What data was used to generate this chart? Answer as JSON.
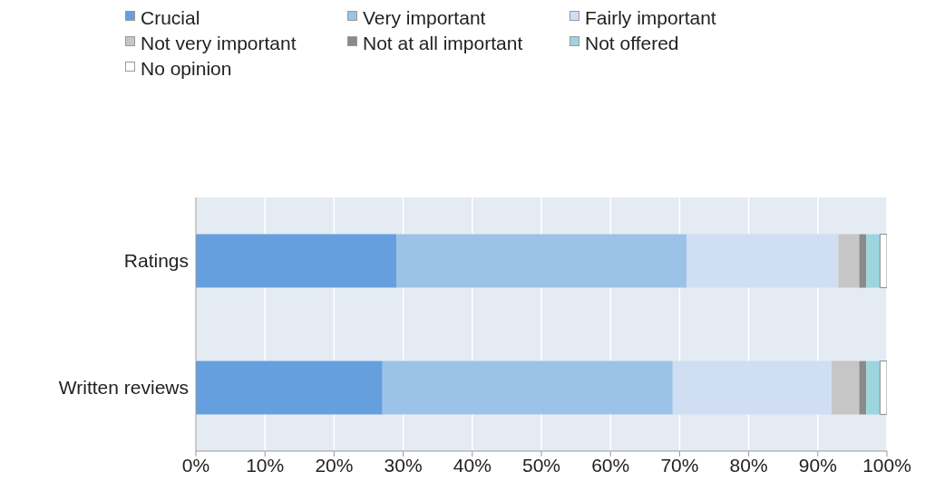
{
  "chart_data": {
    "type": "bar",
    "orientation": "horizontal",
    "stacked": true,
    "categories": [
      "Ratings",
      "Written reviews"
    ],
    "series": [
      {
        "name": "Crucial",
        "color": "#659fdd",
        "values": [
          29,
          27
        ]
      },
      {
        "name": "Very important",
        "color": "#9cc2e7",
        "values": [
          42,
          42
        ]
      },
      {
        "name": "Fairly important",
        "color": "#cfdef3",
        "values": [
          22,
          23
        ]
      },
      {
        "name": "Not very important",
        "color": "#c6c6c6",
        "values": [
          3,
          4
        ]
      },
      {
        "name": "Not at all important",
        "color": "#8a8a8a",
        "values": [
          1,
          1
        ]
      },
      {
        "name": "Not offered",
        "color": "#9dd5df",
        "values": [
          2,
          2
        ]
      },
      {
        "name": "No opinion",
        "color": "#ffffff",
        "values": [
          1,
          1
        ]
      }
    ],
    "xlim": [
      0,
      100
    ],
    "xticks": [
      {
        "value": 0,
        "label": "0%"
      },
      {
        "value": 10,
        "label": "10%"
      },
      {
        "value": 20,
        "label": "20%"
      },
      {
        "value": 30,
        "label": "30%"
      },
      {
        "value": 40,
        "label": "40%"
      },
      {
        "value": 50,
        "label": "50%"
      },
      {
        "value": 60,
        "label": "60%"
      },
      {
        "value": 70,
        "label": "70%"
      },
      {
        "value": 80,
        "label": "80%"
      },
      {
        "value": 90,
        "label": "90%"
      },
      {
        "value": 100,
        "label": "100%"
      }
    ],
    "grid": "x",
    "legend": "top left"
  }
}
